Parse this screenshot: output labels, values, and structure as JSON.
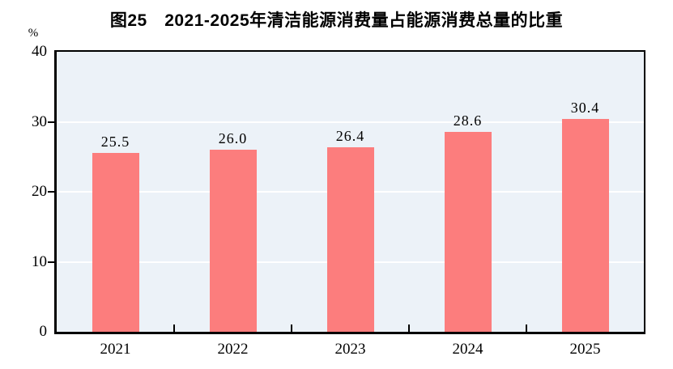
{
  "chart_data": {
    "type": "bar",
    "title": "图25　2021-2025年清洁能源消费量占能源消费总量的比重",
    "xlabel": "",
    "ylabel": "%",
    "categories": [
      "2021",
      "2022",
      "2023",
      "2024",
      "2025"
    ],
    "values": [
      25.5,
      26.0,
      26.4,
      28.6,
      30.4
    ],
    "data_labels": [
      "25.5",
      "26.0",
      "26.4",
      "28.6",
      "30.4"
    ],
    "ylim": [
      0,
      40
    ],
    "yticks": [
      0,
      10,
      20,
      30,
      40
    ],
    "ytick_labels": [
      "0",
      "10",
      "20",
      "30",
      "40"
    ],
    "grid": true,
    "grid_values": [
      10,
      20,
      30
    ],
    "legend_position": "none",
    "colors": {
      "bar": "#FC7D7D",
      "plot_background": "#ECF2F8",
      "gridline": "#FFFFFF",
      "axis": "#000000",
      "text": "#000000",
      "page_background": "#FFFFFF"
    }
  }
}
